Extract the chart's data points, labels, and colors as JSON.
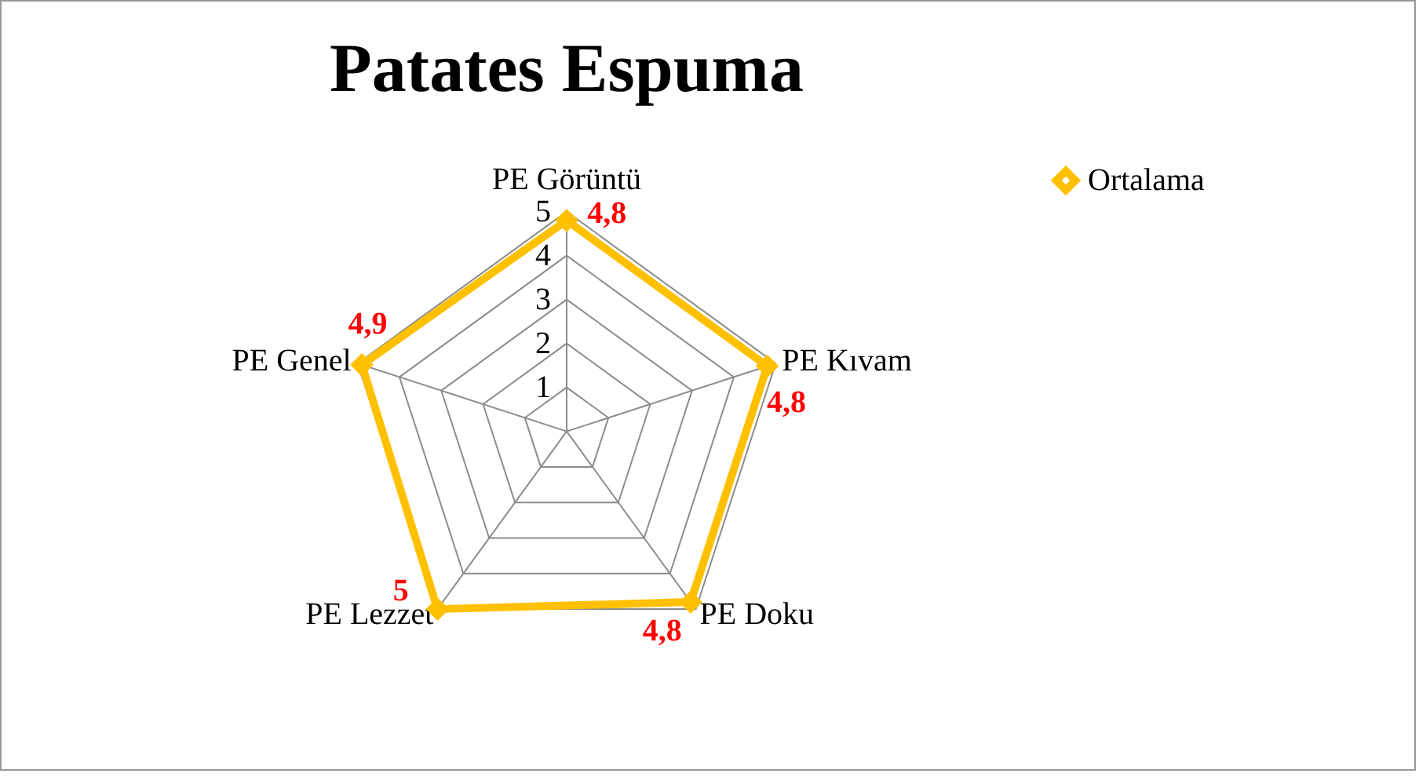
{
  "chart_data": {
    "type": "radar",
    "title": "Patates Espuma",
    "categories": [
      "PE Görüntü",
      "PE Kıvam",
      "PE Doku",
      "PE Lezzet",
      "PE Genel"
    ],
    "series": [
      {
        "name": "Ortalama",
        "color": "#ffc000",
        "values": [
          4.8,
          4.8,
          4.8,
          5,
          4.9
        ],
        "value_labels": [
          "4,8",
          "4,8",
          "4,8",
          "5",
          "4,9"
        ]
      }
    ],
    "ylim": [
      0,
      5
    ],
    "yticks": [
      1,
      2,
      3,
      4,
      5
    ],
    "grid": true,
    "legend": "right",
    "marker": "diamond"
  }
}
